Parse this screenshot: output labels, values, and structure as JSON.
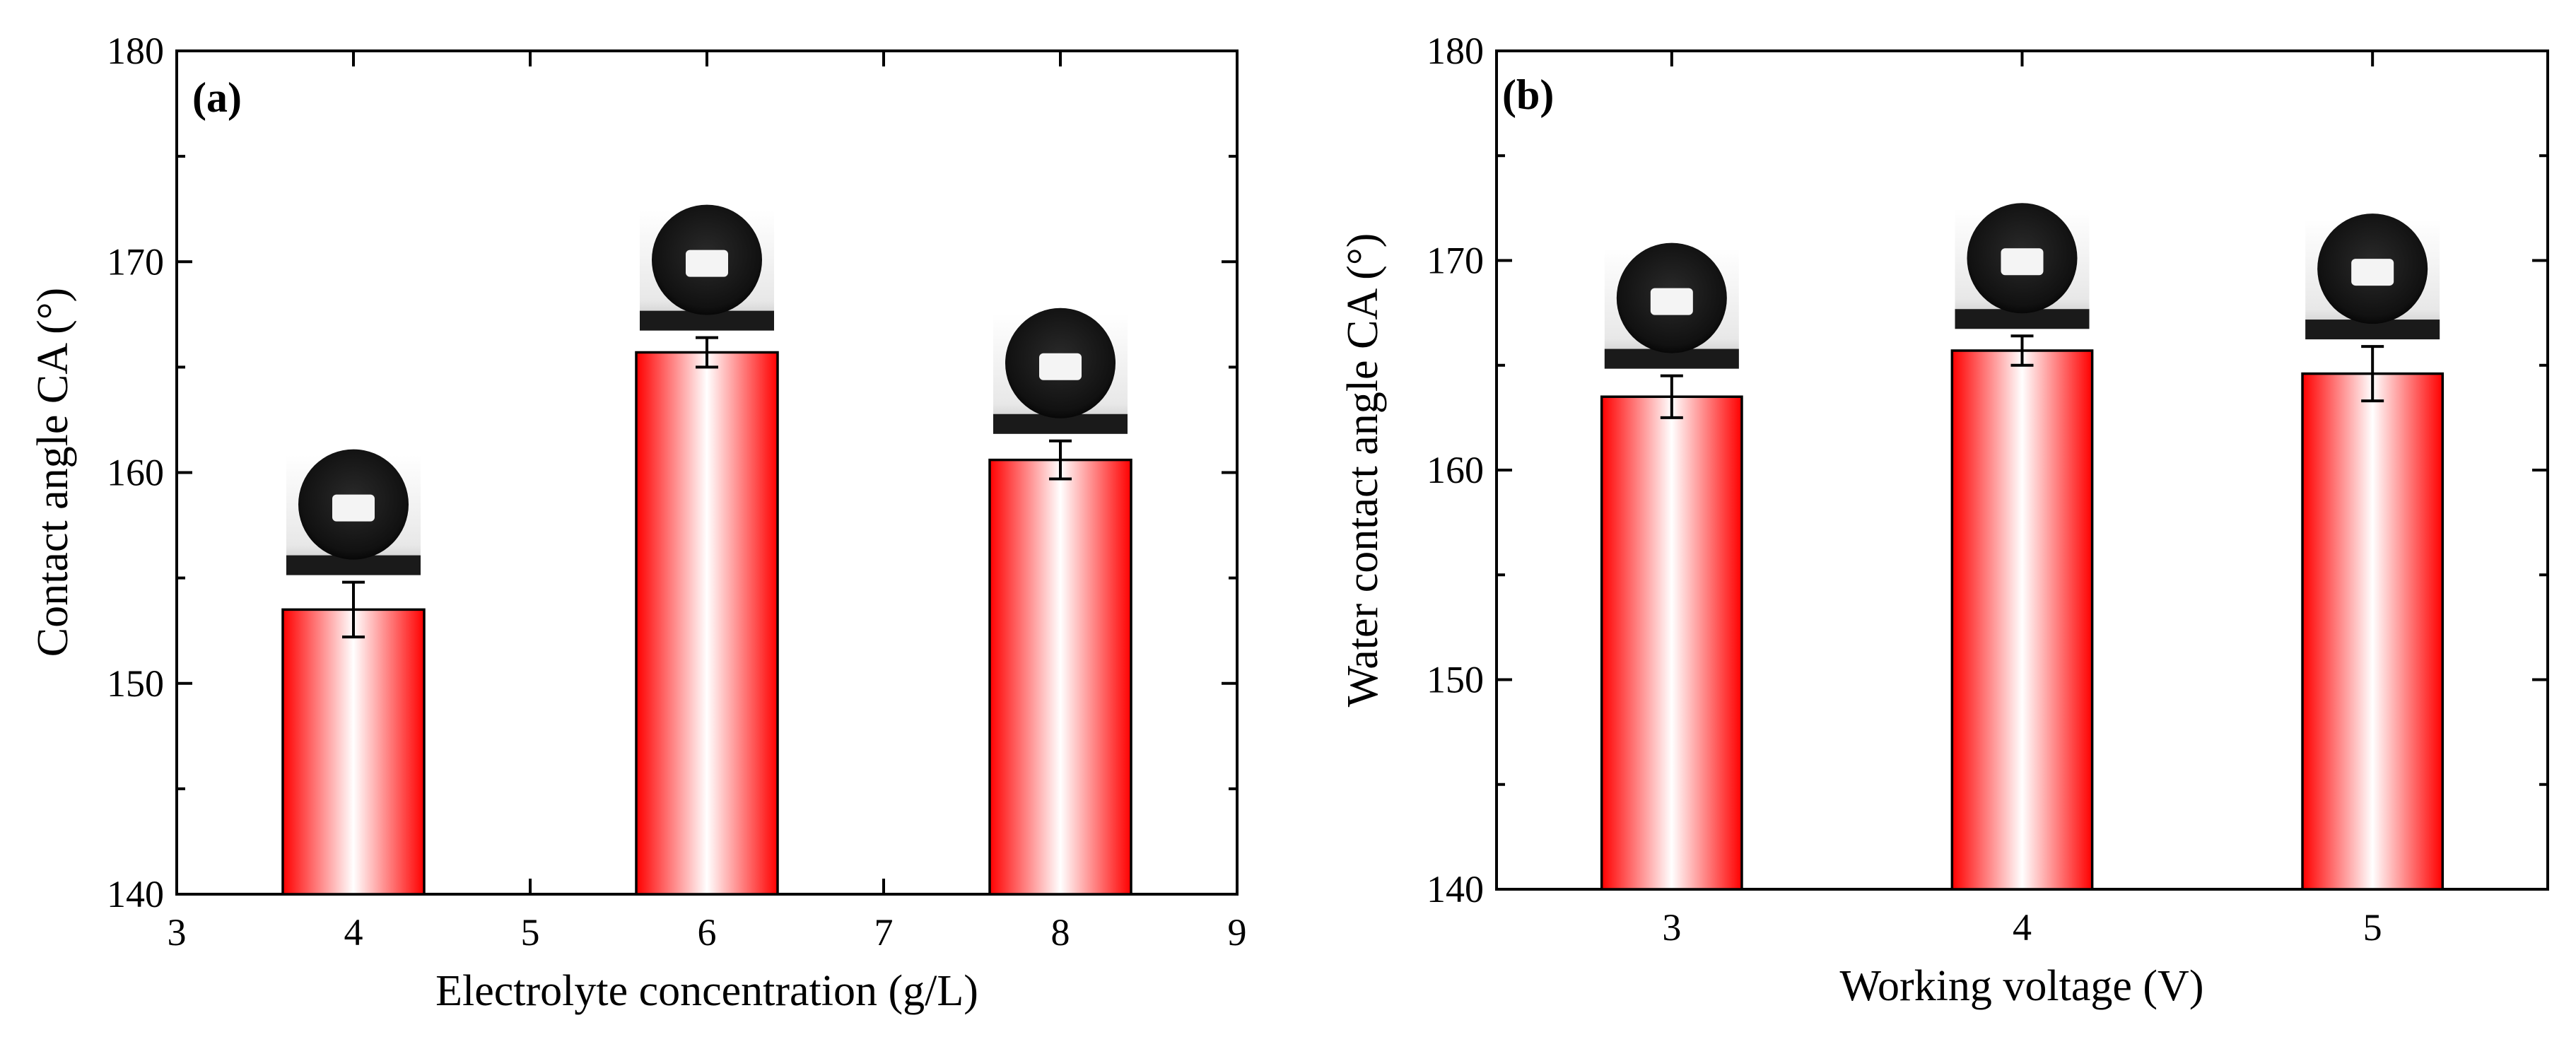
{
  "chart_data": [
    {
      "type": "bar",
      "panel_label": "(a)",
      "xlabel": "Electrolyte concentration (g/L)",
      "ylabel": "Contact angle CA (°)",
      "xlim": [
        3,
        9
      ],
      "ylim": [
        140,
        180
      ],
      "x_ticks": [
        "3",
        "4",
        "5",
        "6",
        "7",
        "8",
        "9"
      ],
      "y_ticks": [
        "140",
        "150",
        "160",
        "170",
        "180"
      ],
      "x": [
        4,
        6,
        8
      ],
      "values": [
        153.5,
        165.7,
        160.6
      ],
      "errors": [
        1.3,
        0.7,
        0.9
      ],
      "bar_width": 0.8,
      "inset_images": [
        "droplet-photo",
        "droplet-photo",
        "droplet-photo"
      ]
    },
    {
      "type": "bar",
      "panel_label": "(b)",
      "xlabel": "Working voltage (V)",
      "ylabel": "Water contact angle CA (°)",
      "xlim": [
        2.5,
        5.5
      ],
      "ylim": [
        140,
        180
      ],
      "x_ticks": [
        "3",
        "4",
        "5"
      ],
      "y_ticks": [
        "140",
        "150",
        "160",
        "170",
        "180"
      ],
      "x": [
        3,
        4,
        5
      ],
      "values": [
        163.5,
        165.7,
        164.6
      ],
      "errors": [
        1.0,
        0.7,
        1.3
      ],
      "bar_width": 0.4,
      "inset_images": [
        "droplet-photo",
        "droplet-photo",
        "droplet-photo"
      ]
    }
  ],
  "colors": {
    "bar_edge": "#ff0000",
    "bar_center": "#ffffff",
    "axis": "#000000"
  }
}
